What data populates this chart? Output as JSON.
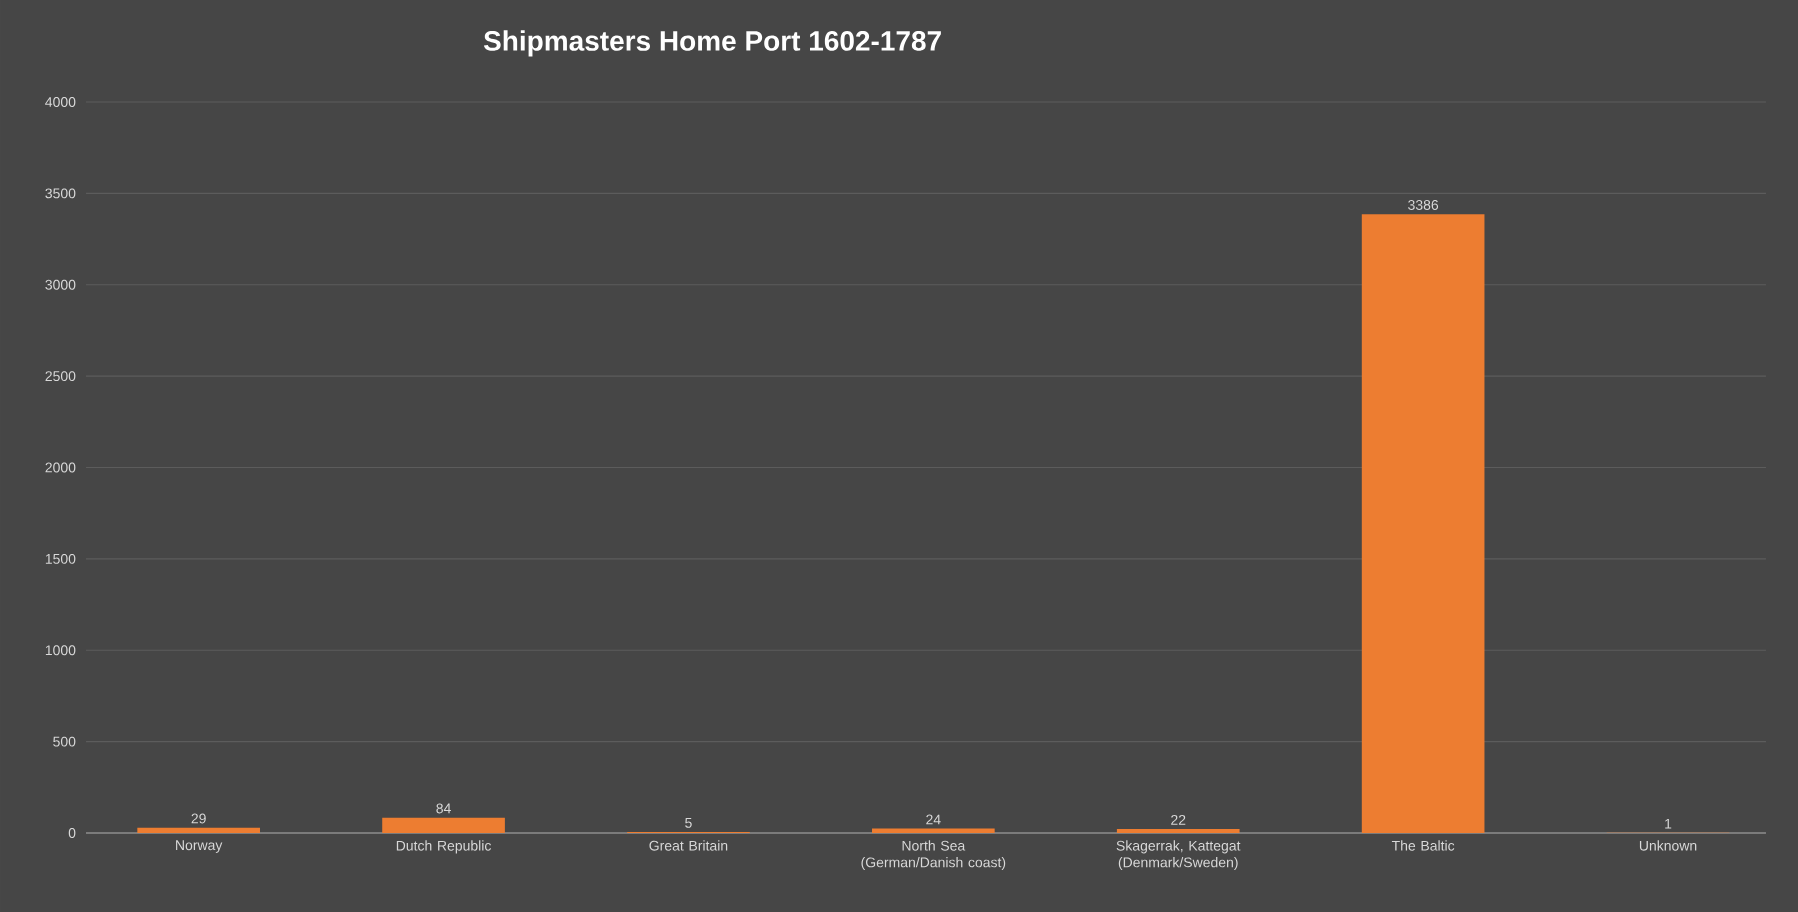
{
  "chart_data": {
    "type": "bar",
    "title": "Shipmasters Home Port 1602-1787",
    "categories": [
      "Norway",
      "Dutch Republic",
      "Great Britain",
      "North Sea (German/Danish coast)",
      "Skagerrak, Kattegat (Denmark/Sweden)",
      "The Baltic",
      "Unknown"
    ],
    "values": [
      29,
      84,
      5,
      24,
      22,
      3386,
      1
    ],
    "color": "#ed7d31",
    "ylim": [
      0,
      4000
    ],
    "yticks": [
      0,
      500,
      1000,
      1500,
      2000,
      2500,
      3000,
      3500,
      4000
    ],
    "grid": "y",
    "data_labels": true
  }
}
